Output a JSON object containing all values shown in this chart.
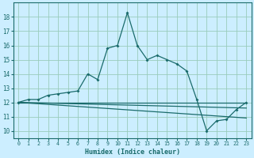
{
  "xlabel": "Humidex (Indice chaleur)",
  "xlim": [
    -0.5,
    23.5
  ],
  "ylim": [
    9.5,
    19.0
  ],
  "yticks": [
    10,
    11,
    12,
    13,
    14,
    15,
    16,
    17,
    18
  ],
  "xticks": [
    0,
    1,
    2,
    3,
    4,
    5,
    6,
    7,
    8,
    9,
    10,
    11,
    12,
    13,
    14,
    15,
    16,
    17,
    18,
    19,
    20,
    21,
    22,
    23
  ],
  "bg_color": "#cceeff",
  "grid_color": "#99ccbb",
  "line_color": "#1a6b6b",
  "line1_y": [
    12.0,
    12.2,
    12.2,
    12.5,
    12.6,
    12.7,
    12.8,
    14.0,
    13.6,
    15.8,
    16.0,
    18.3,
    16.0,
    15.0,
    15.3,
    15.0,
    14.7,
    14.2,
    12.2,
    10.0,
    10.7,
    10.8,
    11.5,
    12.0
  ],
  "line2_x": [
    0,
    23
  ],
  "line2_y": [
    12.0,
    12.0
  ],
  "line3_x": [
    0,
    23
  ],
  "line3_y": [
    12.0,
    11.6
  ],
  "line4_x": [
    0,
    23
  ],
  "line4_y": [
    12.0,
    10.9
  ]
}
